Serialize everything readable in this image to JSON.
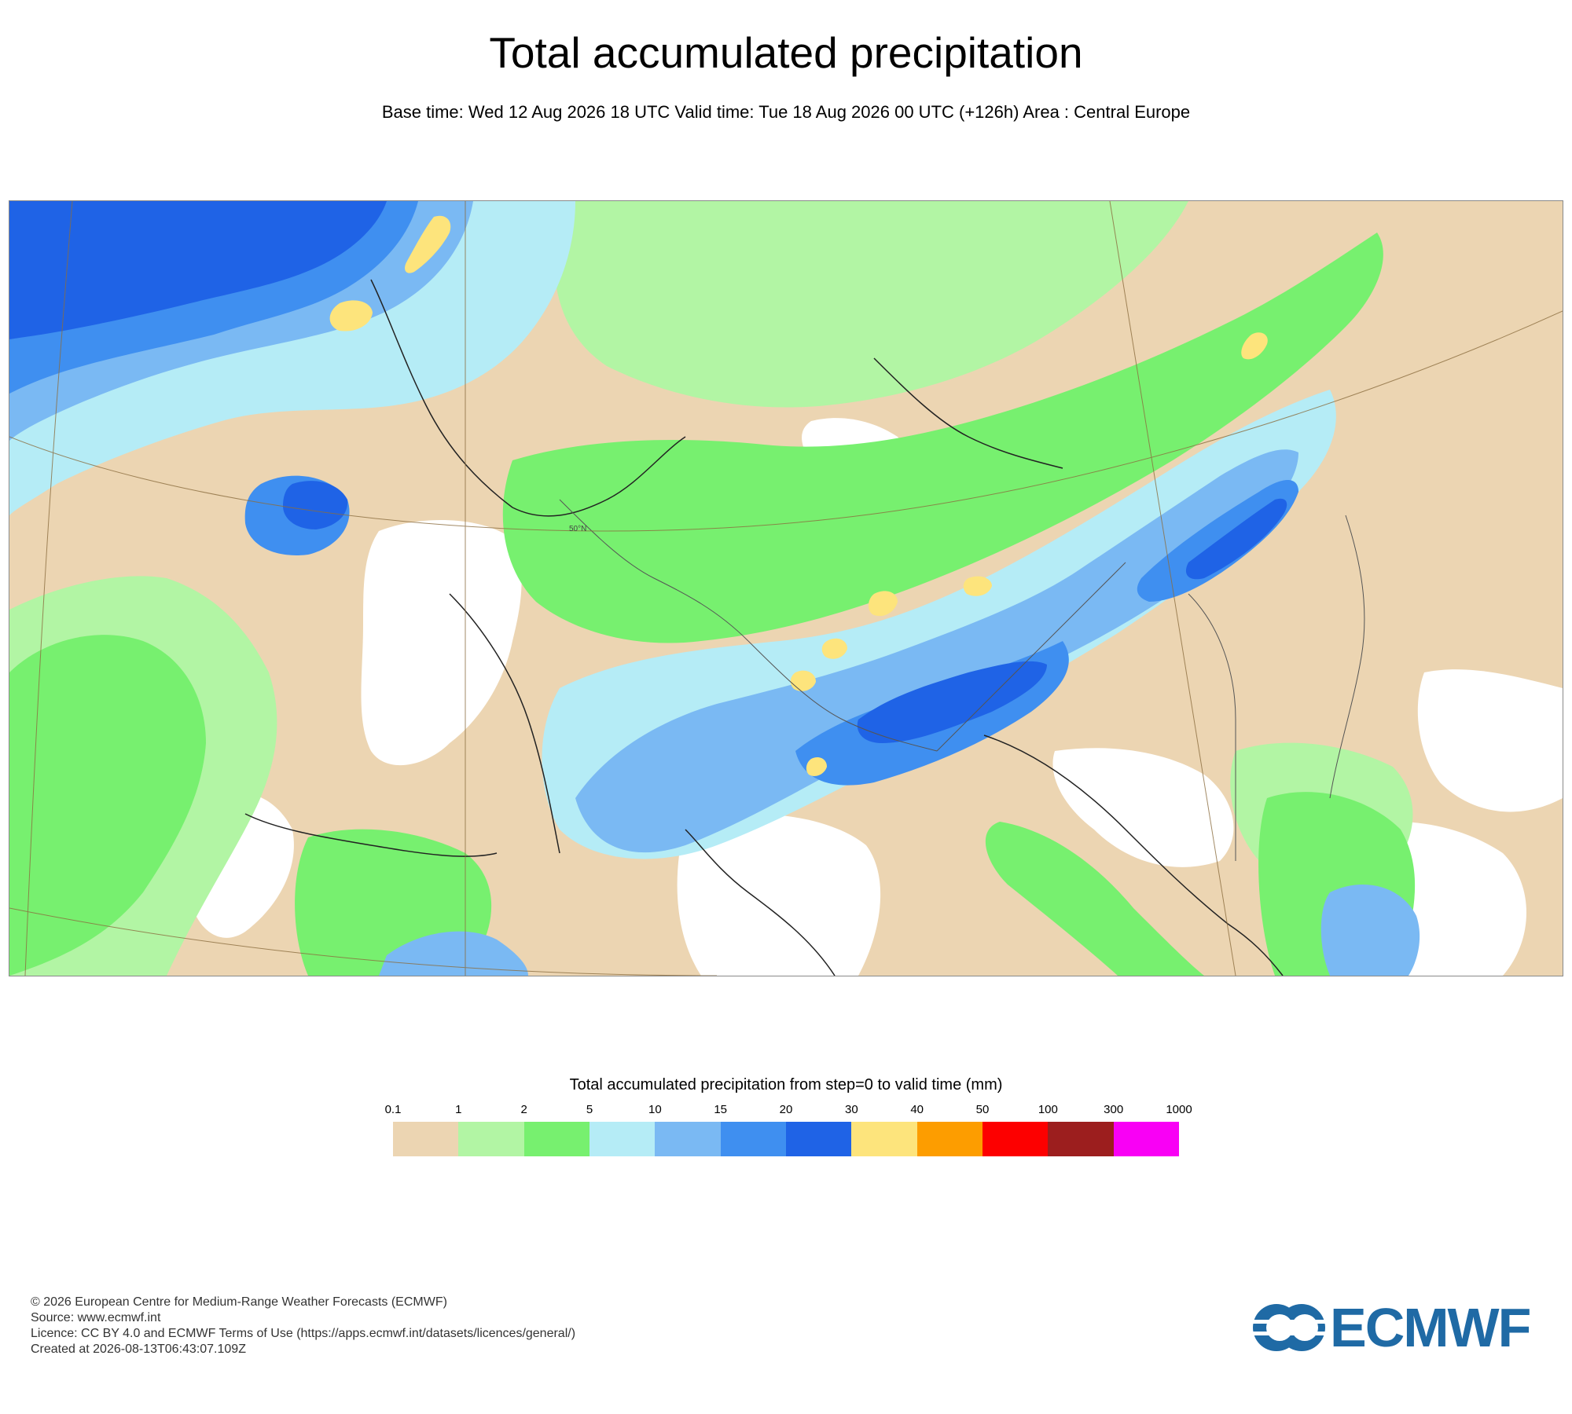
{
  "header": {
    "title": "Total accumulated precipitation",
    "subtitle": "Base time: Wed 12 Aug 2026 18 UTC Valid time: Tue 18 Aug 2026 00 UTC (+126h) Area : Central Europe"
  },
  "map": {
    "area": "Central Europe",
    "gridline_label": "50°N",
    "background_color": "#ffffff",
    "coastline_color": "#222222"
  },
  "legend": {
    "title": "Total accumulated precipitation from step=0 to valid time (mm)",
    "thresholds": [
      "0.1",
      "1",
      "2",
      "5",
      "10",
      "15",
      "20",
      "30",
      "40",
      "50",
      "100",
      "300",
      "1000"
    ],
    "colors": [
      "#ecd5b2",
      "#b2f5a4",
      "#77f06f",
      "#b5ecf6",
      "#7ab9f3",
      "#3f8ff0",
      "#1f63e6",
      "#fde47c",
      "#fd9d00",
      "#fd0000",
      "#9c1e1e",
      "#f900f5"
    ]
  },
  "footer": {
    "copyright": "© 2026 European Centre for Medium-Range Weather Forecasts (ECMWF)",
    "source": "Source: www.ecmwf.int",
    "licence": "Licence: CC BY 4.0 and ECMWF Terms of Use (https://apps.ecmwf.int/datasets/licences/general/)",
    "created": "Created at 2026-08-13T06:43:07.109Z"
  },
  "logo": {
    "text": "ECMWF",
    "color": "#1f6aa5"
  }
}
